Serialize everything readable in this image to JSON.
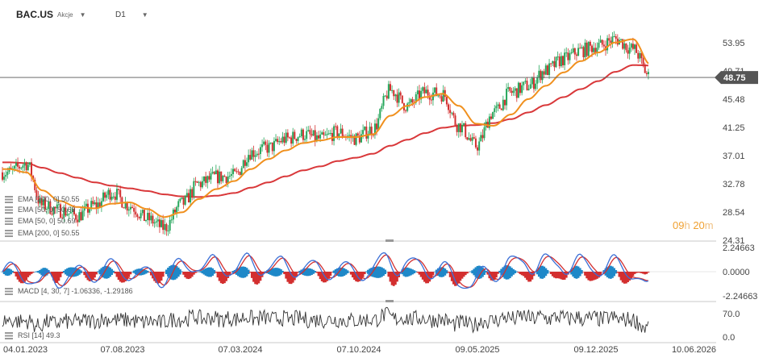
{
  "header": {
    "symbol": "BAC.US",
    "asset_type": "Akcje",
    "timeframe": "D1"
  },
  "timer": {
    "hours": "09",
    "h_unit": "h",
    "minutes": "20",
    "m_unit": "m"
  },
  "legend": {
    "ema1": "EMA [200, 0] 50.55",
    "ema2": "EMA [50, 0] 50.69",
    "ema3": "EMA [50, 0] 50.69",
    "ema4": "EMA [200, 0] 50.55",
    "macd": "MACD [4, 30, 7] -1.06336, -1.29186",
    "rsi": "RSI [14] 49.3"
  },
  "colors": {
    "up": "#26a65b",
    "down": "#d32f2f",
    "ema50": "#f0901e",
    "ema200": "#d9383a",
    "macd_line": "#3b6fd6",
    "signal_line": "#d32f2f",
    "hist_pos": "#1e88c8",
    "hist_neg": "#d32f2f",
    "rsi": "#333333",
    "price_tag": "#555555"
  },
  "chart_data": [
    {
      "type": "candlestick",
      "title": "BAC.US",
      "x_labels": [
        "04.01.2023",
        "07.08.2023",
        "07.03.2024",
        "07.10.2024",
        "09.05.2025",
        "09.12.2025",
        "10.06.2026"
      ],
      "y_ticks": [
        "53.95",
        "49.71",
        "45.48",
        "41.25",
        "37.01",
        "32.78",
        "28.54",
        "24.31"
      ],
      "ylim": [
        24.31,
        58.2
      ],
      "last_price": "48.75",
      "series": [
        {
          "name": "Price",
          "x": [
            "2023-01",
            "2023-02",
            "2023-03",
            "2023-04",
            "2023-05",
            "2023-06",
            "2023-07",
            "2023-08",
            "2023-09",
            "2023-10",
            "2023-11",
            "2023-12",
            "2024-01",
            "2024-02",
            "2024-03",
            "2024-04",
            "2024-05",
            "2024-06",
            "2024-07",
            "2024-08",
            "2024-09",
            "2024-10",
            "2024-11",
            "2024-12",
            "2025-01",
            "2025-02",
            "2025-03",
            "2025-04",
            "2025-05",
            "2025-06",
            "2025-07",
            "2025-08",
            "2025-09",
            "2025-10",
            "2025-11",
            "2025-12",
            "2026-01",
            "2026-02"
          ],
          "y": [
            34.5,
            35.8,
            29.5,
            28.8,
            28.0,
            29.5,
            31.5,
            29.5,
            27.5,
            26.2,
            29.8,
            32.8,
            33.8,
            34.0,
            37.5,
            38.2,
            39.5,
            40.2,
            39.5,
            40.5,
            39.6,
            41.0,
            46.8,
            44.5,
            46.5,
            46.2,
            41.5,
            38.5,
            43.5,
            46.5,
            47.5,
            49.8,
            51.5,
            52.8,
            53.5,
            54.5,
            53.0,
            48.75
          ]
        },
        {
          "name": "EMA [50, 0]",
          "y": [
            35.0,
            34.5,
            31.8,
            30.2,
            29.3,
            29.1,
            29.8,
            30.0,
            29.0,
            27.8,
            28.5,
            30.5,
            32.0,
            33.2,
            35.0,
            36.5,
            37.8,
            38.9,
            39.3,
            39.8,
            39.8,
            40.2,
            43.0,
            44.5,
            45.8,
            46.3,
            44.5,
            41.8,
            41.5,
            43.2,
            45.5,
            47.5,
            49.5,
            51.2,
            52.5,
            54.0,
            54.5,
            50.69
          ]
        },
        {
          "name": "EMA [200, 0]",
          "y": [
            36.0,
            35.9,
            35.2,
            34.4,
            33.7,
            33.0,
            32.5,
            32.1,
            31.7,
            31.2,
            30.9,
            30.8,
            31.0,
            31.4,
            32.2,
            33.0,
            33.9,
            34.8,
            35.4,
            36.2,
            36.7,
            37.3,
            38.5,
            39.4,
            40.4,
            41.2,
            41.5,
            41.6,
            41.9,
            42.5,
            43.5,
            44.6,
            45.8,
            47.0,
            48.2,
            49.6,
            50.6,
            50.55
          ]
        }
      ]
    },
    {
      "type": "line",
      "title": "MACD [4, 30, 7]",
      "y_ticks": [
        "2.24663",
        "0.0000",
        "-2.24663"
      ],
      "ylim": [
        -2.6,
        2.6
      ],
      "series": [
        {
          "name": "MACD",
          "last": -1.06336
        },
        {
          "name": "Signal",
          "last": -1.29186
        }
      ]
    },
    {
      "type": "line",
      "title": "RSI [14]",
      "y_ticks": [
        "70.0",
        "0.0"
      ],
      "last": 49.3
    }
  ]
}
